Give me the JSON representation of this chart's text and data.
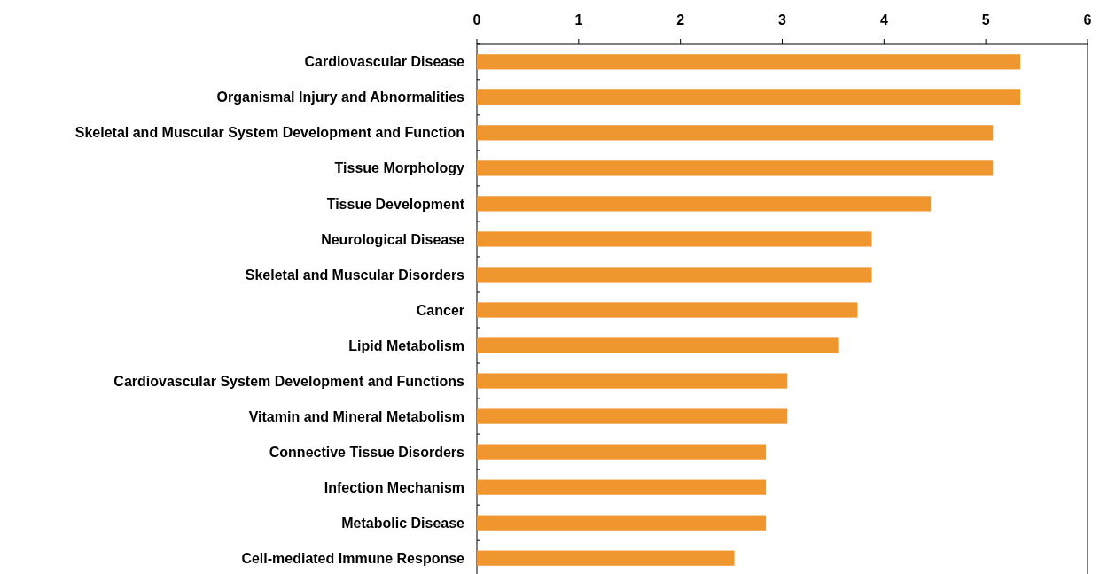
{
  "chart_data": {
    "type": "bar",
    "orientation": "horizontal",
    "categories": [
      "Cardiovascular Disease",
      "Organismal Injury and Abnormalities",
      "Skeletal and Muscular System Development and Function",
      "Tissue Morphology",
      "Tissue Development",
      "Neurological Disease",
      "Skeletal and Muscular Disorders",
      "Cancer",
      "Lipid Metabolism",
      "Cardiovascular System Development and Functions",
      "Vitamin and Mineral Metabolism",
      "Connective Tissue Disorders",
      "Infection Mechanism",
      "Metabolic Disease",
      "Cell-mediated Immune Response"
    ],
    "values": [
      5.34,
      5.34,
      5.07,
      5.07,
      4.46,
      3.88,
      3.88,
      3.74,
      3.55,
      3.05,
      3.05,
      2.84,
      2.84,
      2.84,
      2.53
    ],
    "color": "#f0962e",
    "xlim": [
      0,
      6
    ],
    "xticks": [
      0,
      1,
      2,
      3,
      4,
      5,
      6
    ],
    "grid": false
  }
}
